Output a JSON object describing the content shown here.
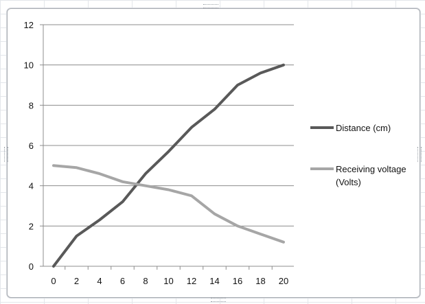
{
  "chart_data": {
    "type": "line",
    "title": "",
    "xlabel": "",
    "ylabel": "",
    "x": [
      0,
      2,
      4,
      6,
      8,
      10,
      12,
      14,
      16,
      18,
      20
    ],
    "xlim": [
      0,
      20
    ],
    "ylim": [
      0,
      12
    ],
    "y_ticks": [
      "0",
      "2",
      "4",
      "6",
      "8",
      "10",
      "12"
    ],
    "x_ticks": [
      "0",
      "2",
      "4",
      "6",
      "8",
      "10",
      "12",
      "14",
      "16",
      "18",
      "20"
    ],
    "grid": "horizontal",
    "legend_position": "right",
    "series": [
      {
        "name": "Distance (cm)",
        "color": "#595959",
        "values": [
          0,
          1.5,
          2.3,
          3.2,
          4.6,
          5.7,
          6.9,
          7.8,
          9.0,
          9.6,
          10.0
        ]
      },
      {
        "name": "Receiving voltage (Volts)",
        "color": "#a6a6a6",
        "values": [
          5.0,
          4.9,
          4.6,
          4.2,
          4.0,
          3.8,
          3.5,
          2.6,
          2.0,
          1.6,
          1.2
        ]
      }
    ]
  }
}
